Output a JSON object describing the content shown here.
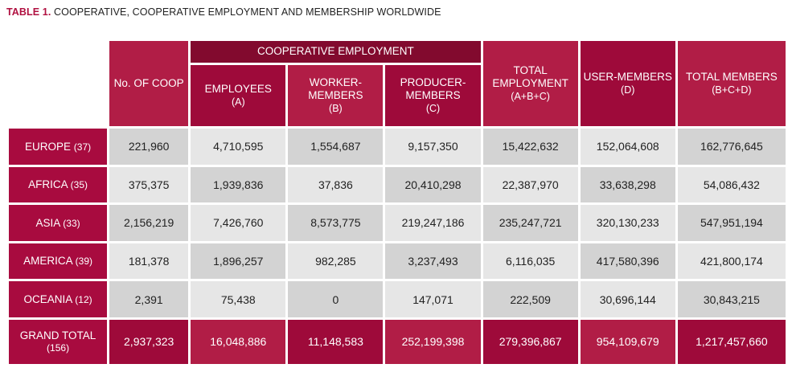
{
  "caption": {
    "label": "TABLE 1.",
    "text": "COOPERATIVE, COOPERATIVE EMPLOYMENT AND MEMBERSHIP WORLDWIDE"
  },
  "header": {
    "group": "COOPERATIVE EMPLOYMENT",
    "no_coop": "No. OF COOP",
    "employees": "EMPLOYEES",
    "employees_sub": "(A)",
    "worker_members": "WORKER-MEMBERS",
    "worker_members_sub": "(B)",
    "producer_members": "PRODUCER-MEMBERS",
    "producer_members_sub": "(C)",
    "total_employment": "TOTAL EMPLOYMENT",
    "total_employment_sub": "(A+B+C)",
    "user_members": "USER-MEMBERS",
    "user_members_sub": "(D)",
    "total_members": "TOTAL MEMBERS",
    "total_members_sub": "(B+C+D)"
  },
  "rows": [
    {
      "region": "EUROPE",
      "count": "(37)",
      "values": [
        "221,960",
        "4,710,595",
        "1,554,687",
        "9,157,350",
        "15,422,632",
        "152,064,608",
        "162,776,645"
      ]
    },
    {
      "region": "AFRICA",
      "count": "(35)",
      "values": [
        "375,375",
        "1,939,836",
        "37,836",
        "20,410,298",
        "22,387,970",
        "33,638,298",
        "54,086,432"
      ]
    },
    {
      "region": "ASIA",
      "count": "(33)",
      "values": [
        "2,156,219",
        "7,426,760",
        "8,573,775",
        "219,247,186",
        "235,247,721",
        "320,130,233",
        "547,951,194"
      ]
    },
    {
      "region": "AMERICA",
      "count": "(39)",
      "values": [
        "181,378",
        "1,896,257",
        "982,285",
        "3,237,493",
        "6,116,035",
        "417,580,396",
        "421,800,174"
      ]
    },
    {
      "region": "OCEANIA",
      "count": "(12)",
      "values": [
        "2,391",
        "75,438",
        "0",
        "147,071",
        "222,509",
        "30,696,144",
        "30,843,215"
      ]
    }
  ],
  "grand_total": {
    "label": "GRAND TOTAL",
    "count": "(156)",
    "values": [
      "2,937,323",
      "16,048,886",
      "11,148,583",
      "252,199,398",
      "279,396,867",
      "954,109,679",
      "1,217,457,660"
    ]
  }
}
